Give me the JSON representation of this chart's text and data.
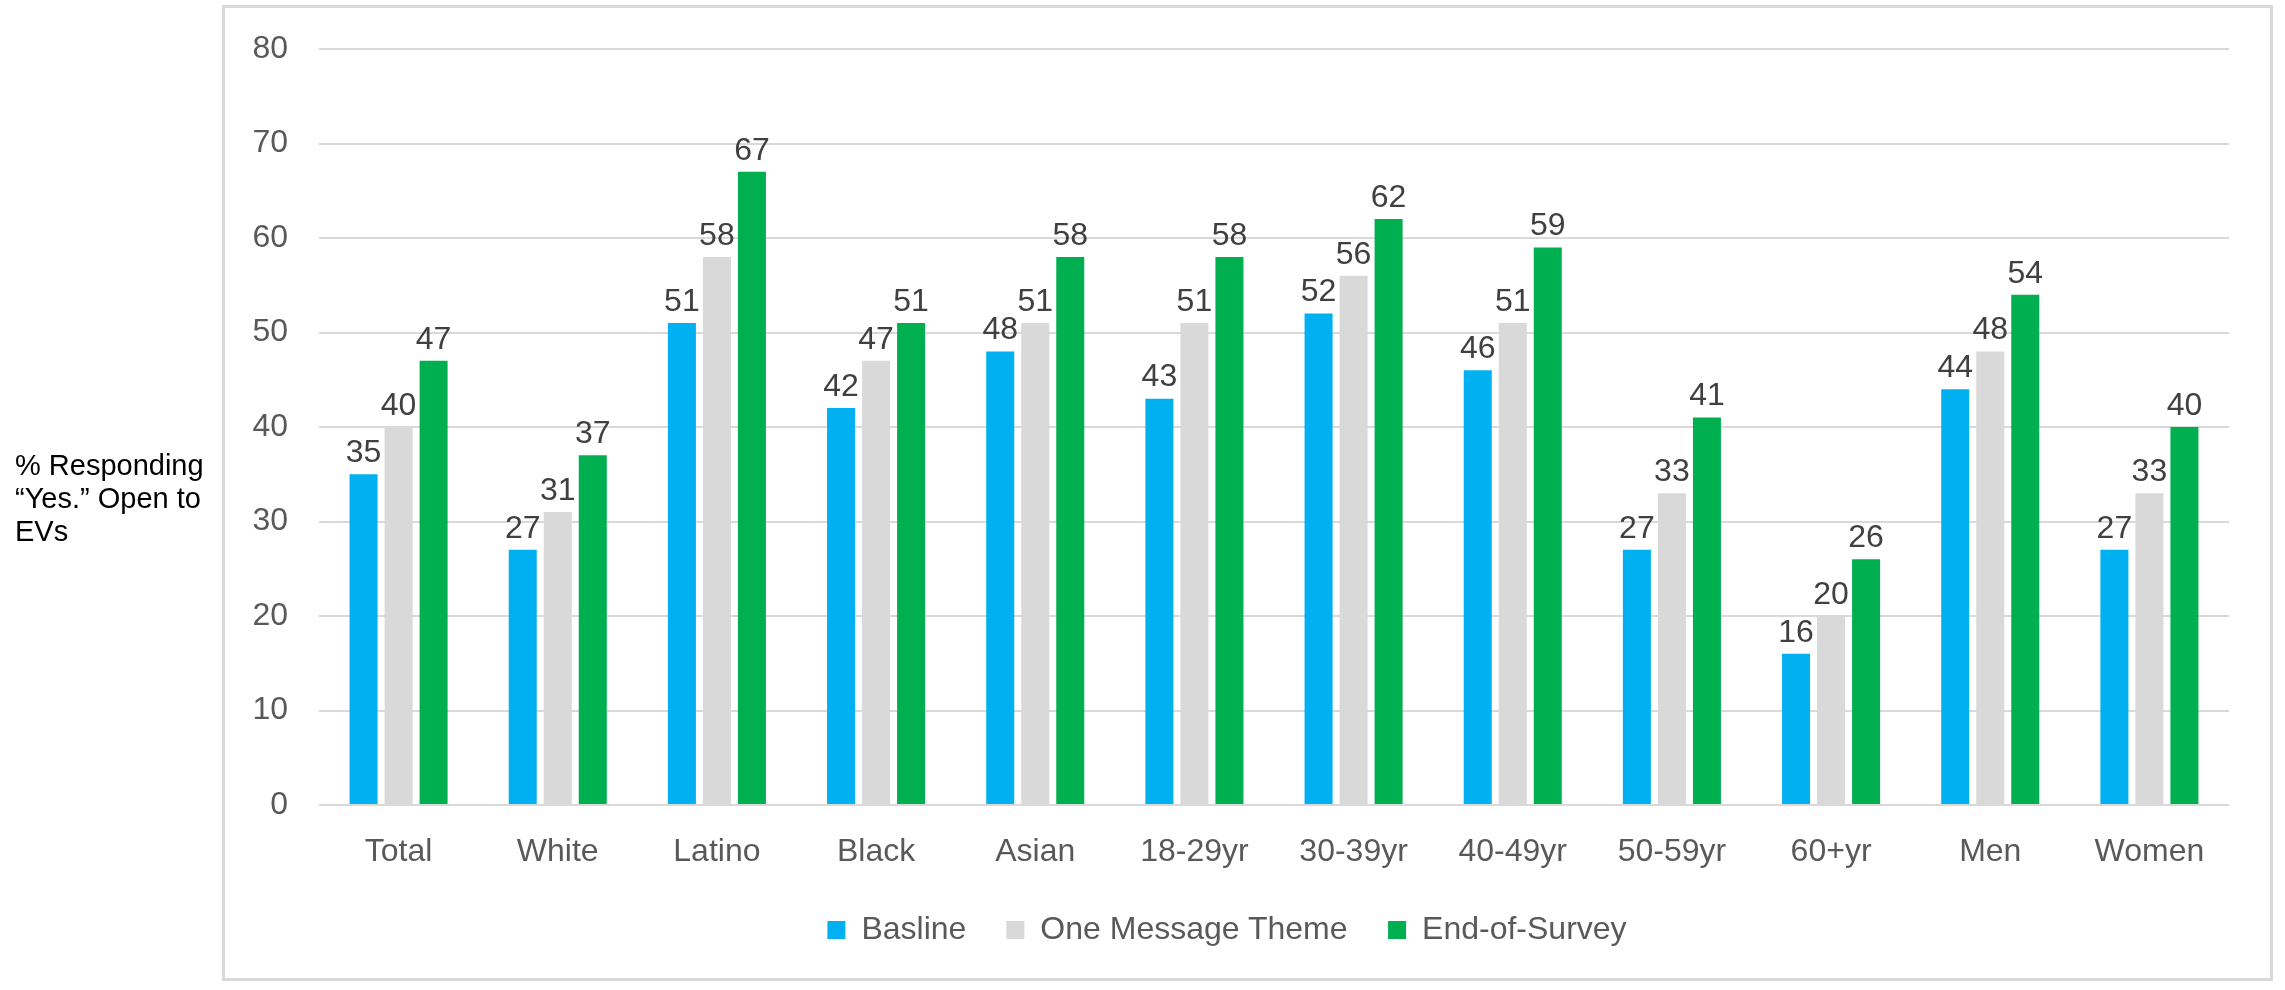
{
  "chart_data": {
    "type": "bar",
    "ylabel": "% Responding “Yes.” Open to EVs",
    "categories": [
      "Total",
      "White",
      "Latino",
      "Black",
      "Asian",
      "18-29yr",
      "30-39yr",
      "40-49yr",
      "50-59yr",
      "60+yr",
      "Men",
      "Women"
    ],
    "series": [
      {
        "name": "Basline",
        "color": "#00b0f0",
        "values": [
          35,
          27,
          51,
          42,
          48,
          43,
          52,
          46,
          27,
          16,
          44,
          27
        ]
      },
      {
        "name": "One Message Theme",
        "color": "#d9d9d9",
        "values": [
          40,
          31,
          58,
          47,
          51,
          51,
          56,
          51,
          33,
          20,
          48,
          33
        ]
      },
      {
        "name": "End-of-Survey",
        "color": "#00b050",
        "values": [
          47,
          37,
          67,
          51,
          58,
          58,
          62,
          59,
          41,
          26,
          54,
          40
        ]
      }
    ],
    "ylim": [
      0,
      80
    ],
    "yticks": [
      0,
      10,
      20,
      30,
      40,
      50,
      60,
      70,
      80
    ],
    "grid": "y",
    "legend": "bottom",
    "data_labels": true
  }
}
